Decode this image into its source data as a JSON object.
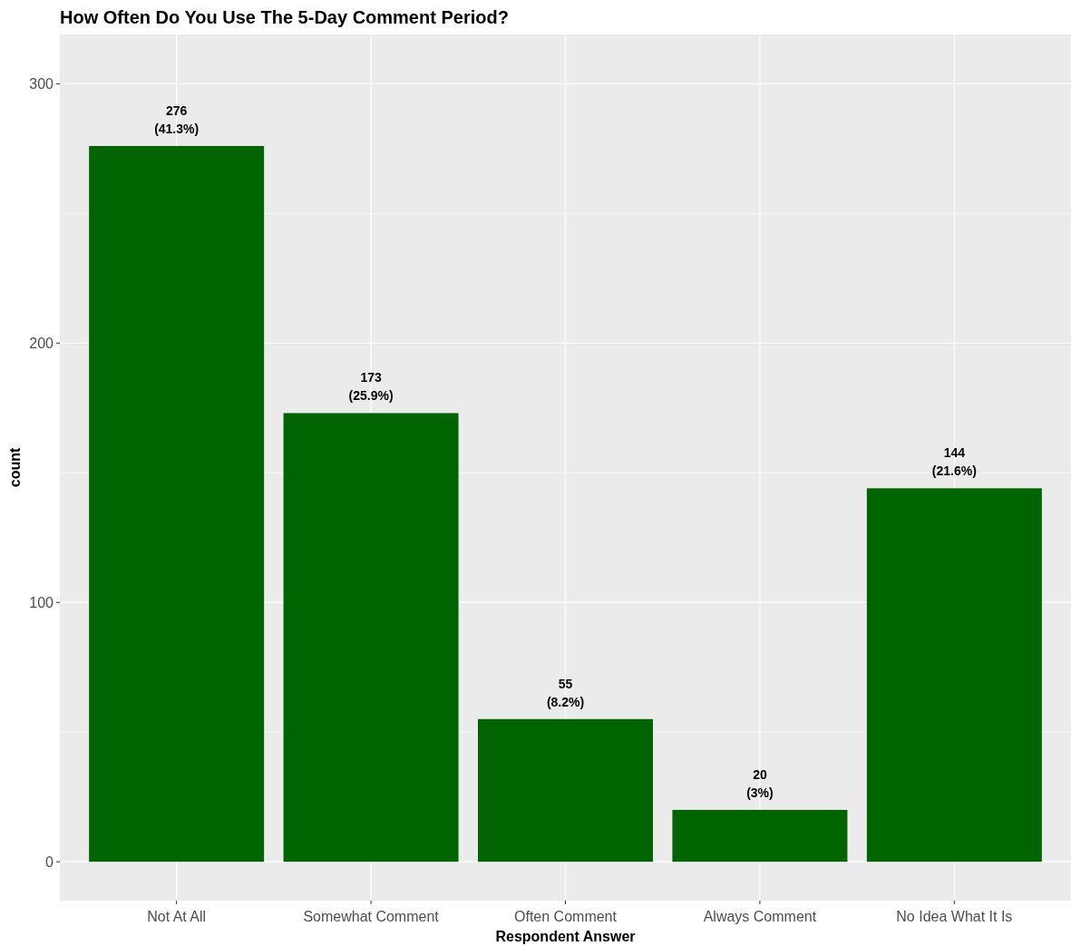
{
  "chart_data": {
    "type": "bar",
    "title": "How Often Do You Use The 5-Day Comment Period?",
    "xlabel": "Respondent Answer",
    "ylabel": "count",
    "categories": [
      "Not At All",
      "Somewhat Comment",
      "Often Comment",
      "Always Comment",
      "No Idea What It Is"
    ],
    "values": [
      276,
      173,
      55,
      20,
      144
    ],
    "value_labels": [
      "276\n(41.3%)",
      "173\n(25.9%)",
      "55\n(8.2%)",
      "20\n(3%)",
      "144\n(21.6%)"
    ],
    "color": "#006400",
    "ylim": [
      -15,
      319
    ],
    "yticks": [
      0,
      {
        "value": 50,
        "label": null
      },
      100,
      {
        "value": 150,
        "label": null
      },
      200,
      {
        "value": 250,
        "label": null
      },
      300
    ],
    "grid": true
  }
}
